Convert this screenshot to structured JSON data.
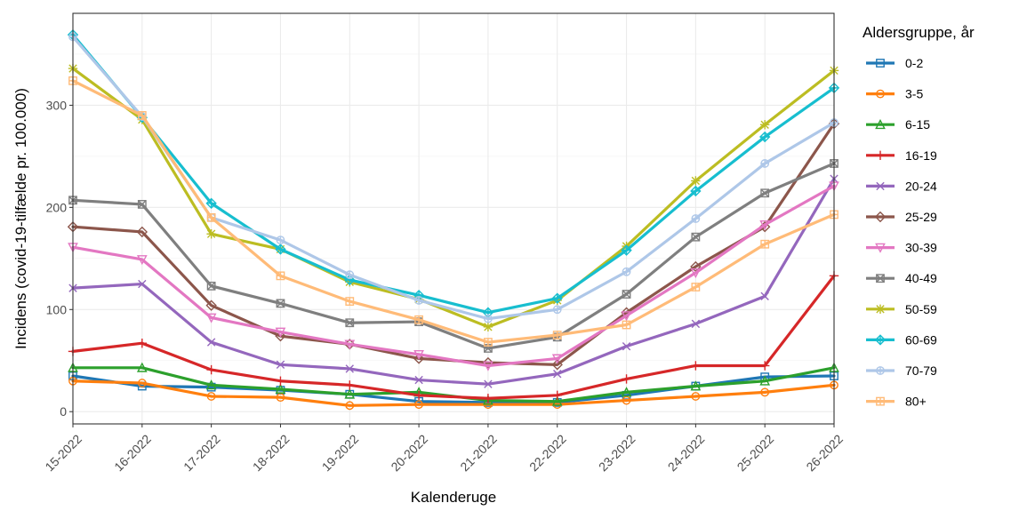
{
  "chart_data": {
    "type": "line",
    "xlabel": "Kalenderuge",
    "ylabel": "Incidens (covid-19-tilfælde pr. 100.000)",
    "ylim": [
      -12,
      390
    ],
    "yticks": [
      0,
      100,
      200,
      300
    ],
    "grid": true,
    "legend_position": "right",
    "legend_title": "Aldersgruppe, år",
    "categories": [
      "15-2022",
      "16-2022",
      "17-2022",
      "18-2022",
      "19-2022",
      "20-2022",
      "21-2022",
      "22-2022",
      "23-2022",
      "24-2022",
      "25-2022",
      "26-2022"
    ],
    "series": [
      {
        "name": "0-2",
        "color": "#1f77b4",
        "marker": "square",
        "values": [
          35,
          25,
          24,
          21,
          17,
          10,
          9,
          9,
          16,
          25,
          34,
          35
        ]
      },
      {
        "name": "3-5",
        "color": "#ff7f0e",
        "marker": "circle",
        "values": [
          30,
          28,
          15,
          14,
          6,
          7,
          7,
          7,
          11,
          15,
          19,
          26
        ]
      },
      {
        "name": "6-15",
        "color": "#2ca02c",
        "marker": "triangle",
        "values": [
          43,
          43,
          26,
          22,
          17,
          19,
          11,
          10,
          19,
          25,
          30,
          43
        ]
      },
      {
        "name": "16-19",
        "color": "#d62728",
        "marker": "plus",
        "values": [
          59,
          67,
          41,
          30,
          26,
          16,
          13,
          16,
          32,
          45,
          45,
          133
        ]
      },
      {
        "name": "20-24",
        "color": "#9467bd",
        "marker": "x",
        "values": [
          121,
          125,
          68,
          46,
          42,
          31,
          27,
          37,
          64,
          86,
          113,
          228
        ]
      },
      {
        "name": "25-29",
        "color": "#8c564b",
        "marker": "diamond",
        "values": [
          181,
          176,
          104,
          74,
          66,
          52,
          48,
          46,
          97,
          142,
          181,
          282
        ]
      },
      {
        "name": "30-39",
        "color": "#e377c2",
        "marker": "triangle-down",
        "values": [
          161,
          149,
          92,
          78,
          66,
          56,
          45,
          52,
          94,
          136,
          183,
          221
        ]
      },
      {
        "name": "40-49",
        "color": "#7f7f7f",
        "marker": "square-x",
        "values": [
          207,
          203,
          123,
          106,
          87,
          88,
          62,
          73,
          115,
          171,
          214,
          243
        ]
      },
      {
        "name": "50-59",
        "color": "#bcbd22",
        "marker": "star",
        "values": [
          336,
          286,
          174,
          159,
          127,
          110,
          83,
          109,
          162,
          226,
          281,
          334
        ]
      },
      {
        "name": "60-69",
        "color": "#17becf",
        "marker": "diamond-plus",
        "values": [
          369,
          288,
          204,
          159,
          129,
          114,
          97,
          111,
          158,
          216,
          269,
          317
        ]
      },
      {
        "name": "70-79",
        "color": "#aec7e8",
        "marker": "circle-plus",
        "values": [
          367,
          289,
          190,
          168,
          134,
          109,
          91,
          100,
          137,
          189,
          243,
          283
        ]
      },
      {
        "name": "80+",
        "color": "#ffbb78",
        "marker": "square-plus",
        "values": [
          324,
          290,
          190,
          133,
          108,
          90,
          68,
          75,
          85,
          122,
          164,
          193
        ]
      }
    ]
  }
}
